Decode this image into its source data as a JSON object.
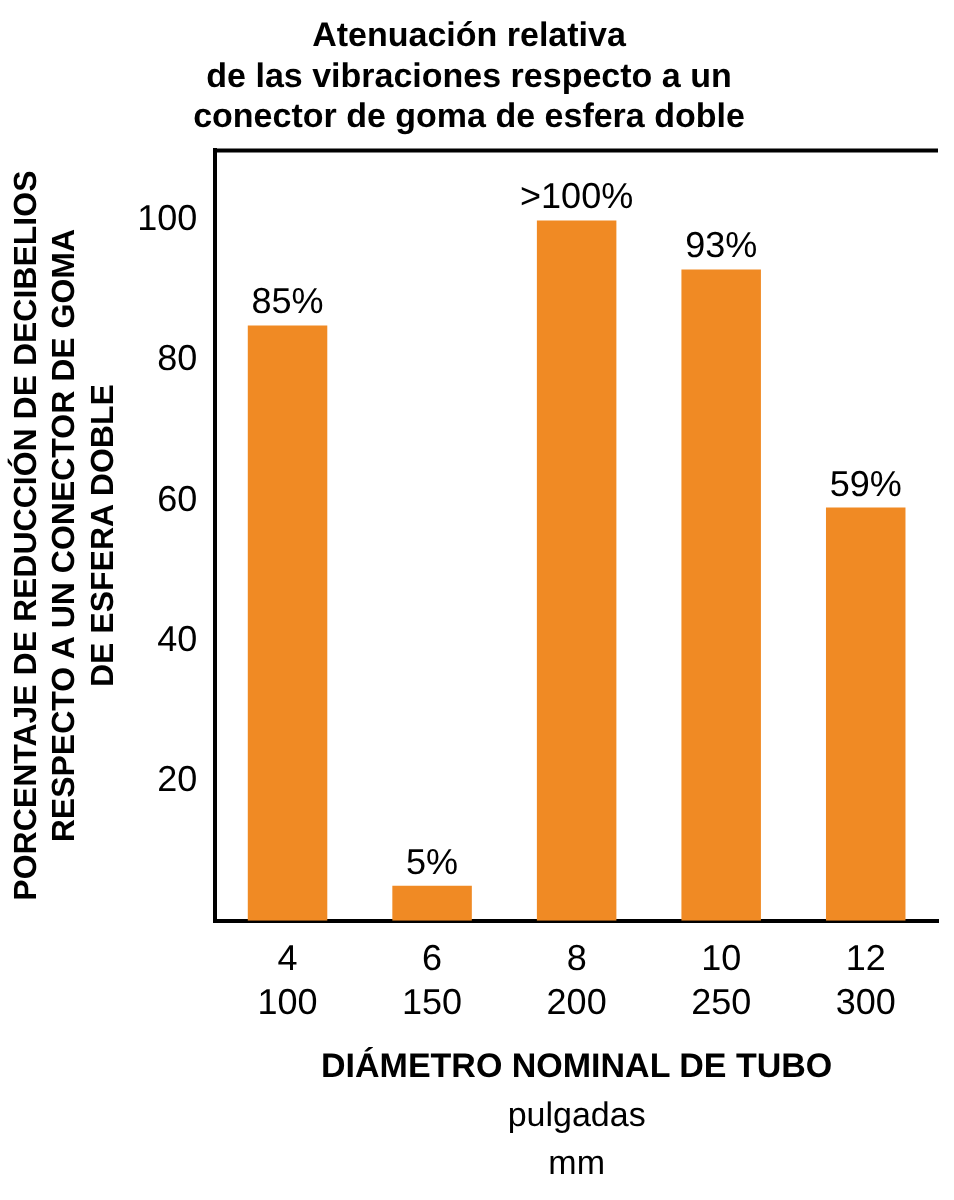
{
  "chart_data": {
    "type": "bar",
    "title": "Atenuación relativa\nde las vibraciones respecto a un\nconector de goma de esfera doble",
    "xlabel": "DIÁMETRO NOMINAL DE TUBO",
    "ylabel": "PORCENTAJE DE REDUCCIÓN DE DECIBELIOS\nRESPECTO A UN CONECTOR DE GOMA\nDE ESFERA DOBLE",
    "annotations": [
      "pulgadas",
      "mm"
    ],
    "categories": [
      "4\n100",
      "6\n150",
      "8\n200",
      "10\n250",
      "12\n300"
    ],
    "values": [
      85,
      5,
      100,
      93,
      59
    ],
    "value_labels": [
      "85%",
      "5%",
      ">100%",
      "93%",
      "59%"
    ],
    "color": "#f08a24",
    "ylim": [
      0,
      110
    ],
    "yticks": [
      20,
      40,
      60,
      80,
      100
    ],
    "grid": false,
    "legend": false
  }
}
